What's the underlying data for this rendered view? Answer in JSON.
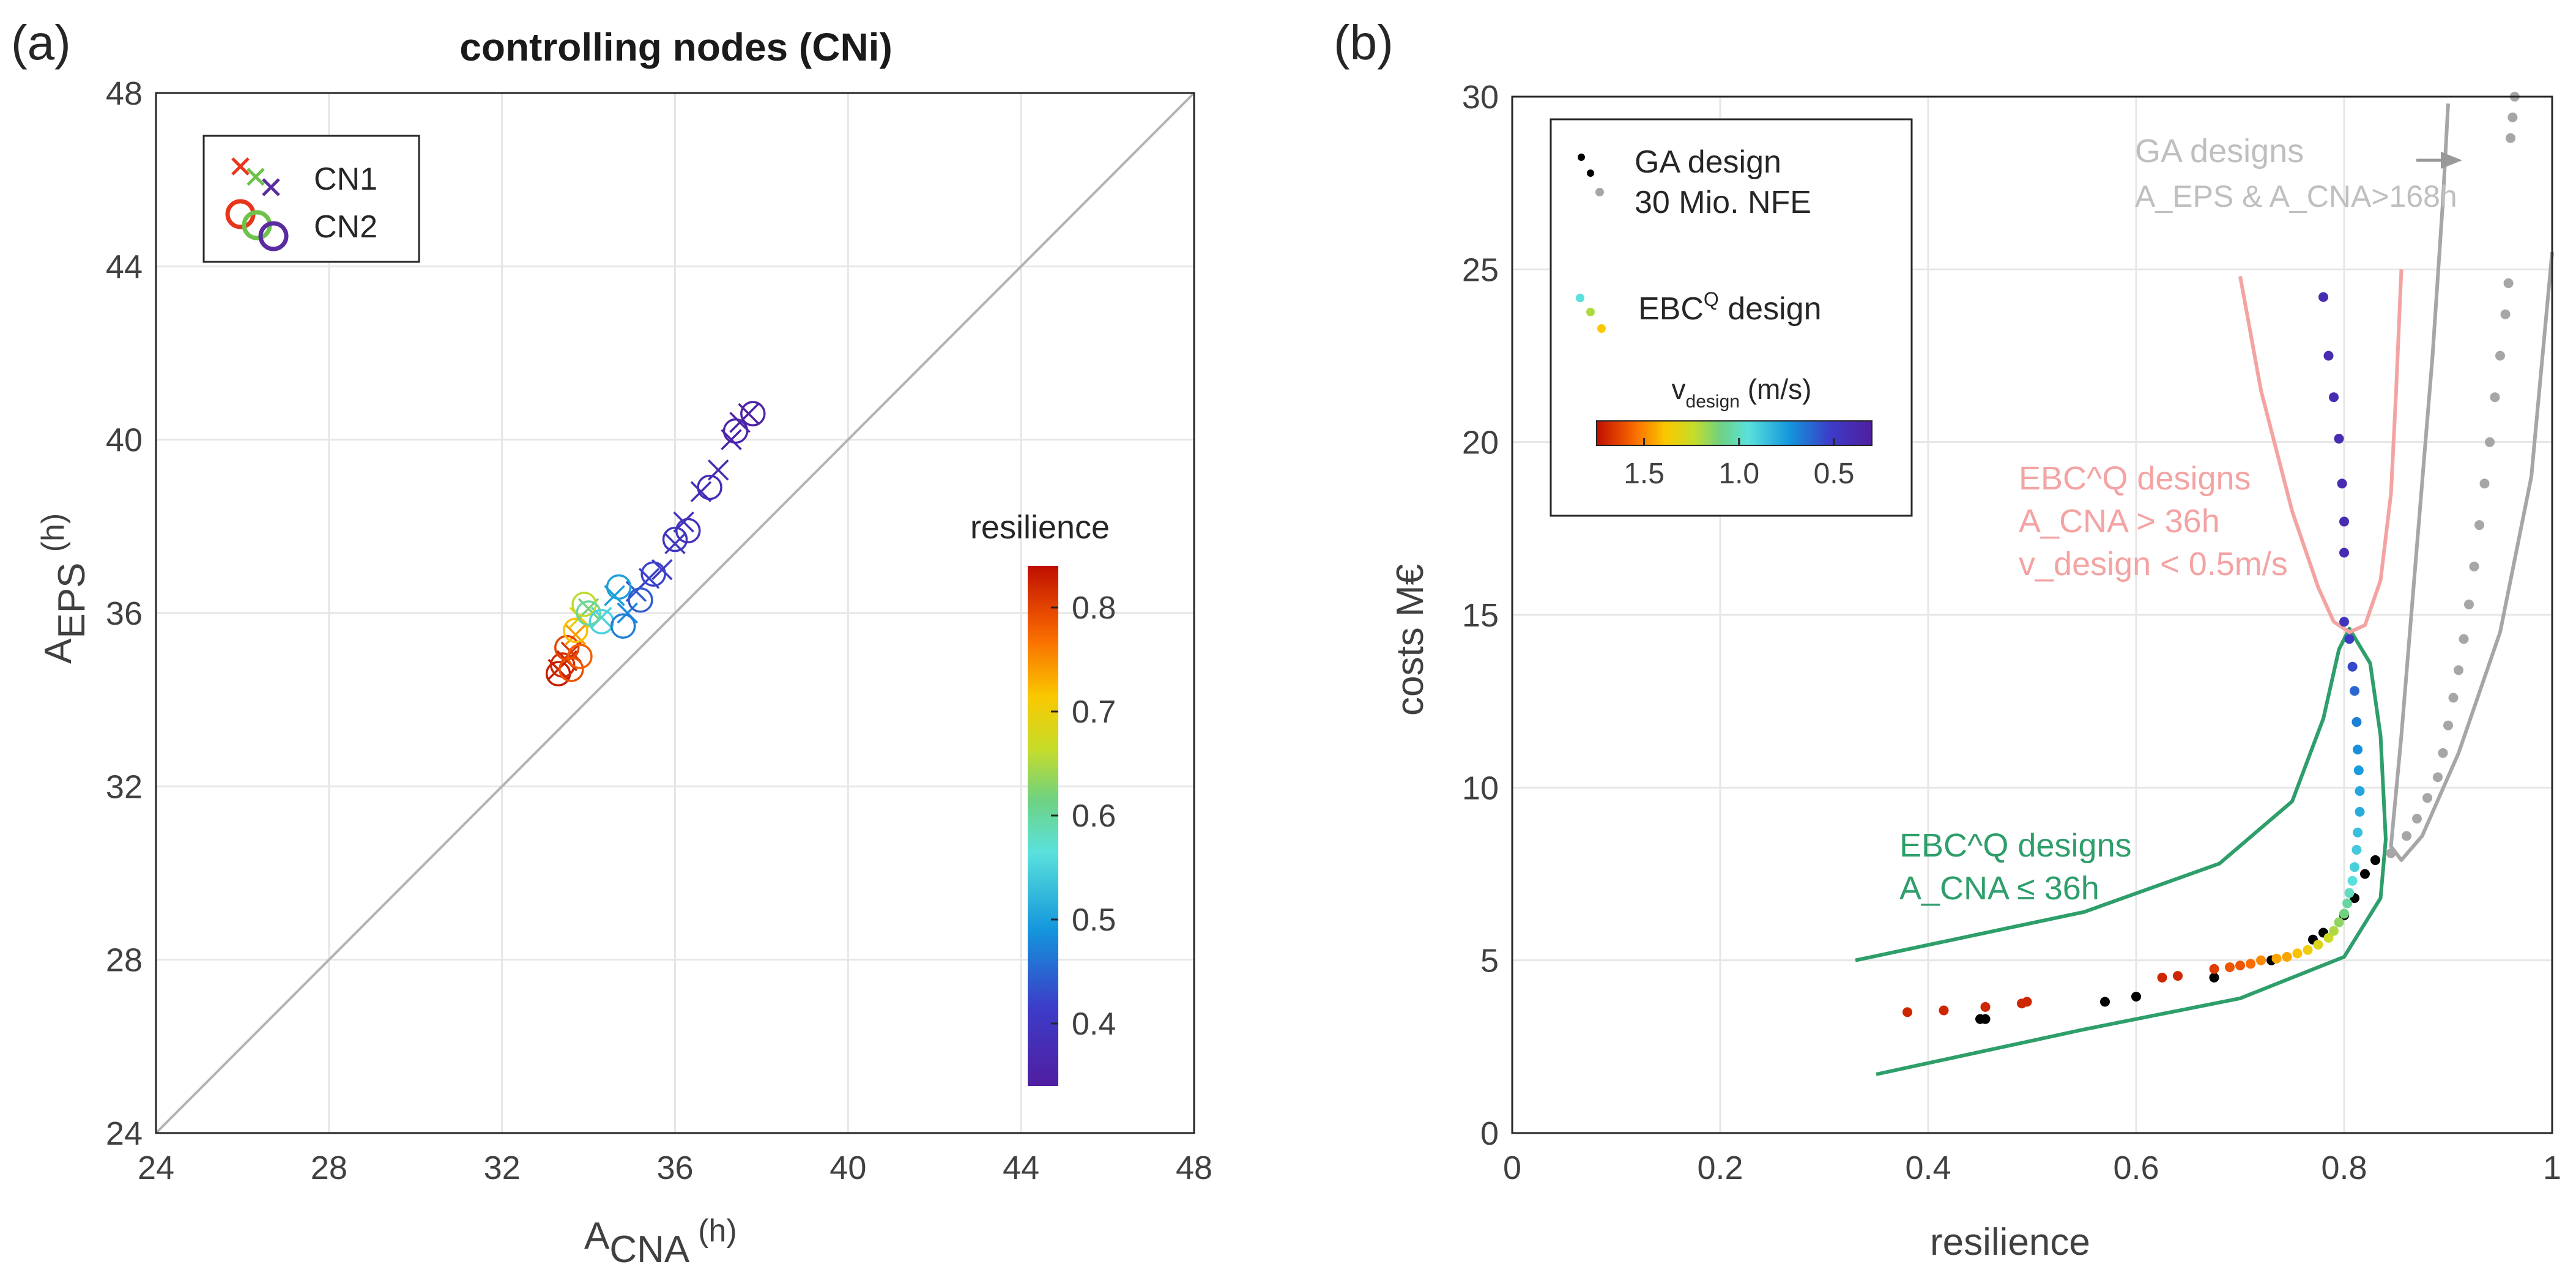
{
  "panel_a_label": "(a)",
  "panel_b_label": "(b)",
  "chart_data": [
    {
      "type": "scatter",
      "title": "controlling nodes (CNi)",
      "xlabel": "A",
      "xlabel_sub": "CNA",
      "xlabel_unit": "(h)",
      "ylabel": "A",
      "ylabel_sub": "EPS",
      "ylabel_unit": "(h)",
      "xlim": [
        24,
        48
      ],
      "ylim": [
        24,
        48
      ],
      "xticks": [
        24,
        28,
        32,
        36,
        40,
        44,
        48
      ],
      "yticks": [
        24,
        28,
        32,
        36,
        40,
        44,
        48
      ],
      "grid": true,
      "reference_line": "y = x",
      "legend": {
        "position": "top-left",
        "entries": [
          {
            "label": "CN1",
            "marker": "x"
          },
          {
            "label": "CN2",
            "marker": "o"
          }
        ]
      },
      "colorbar": {
        "label": "resilience",
        "ticks": [
          "0.8",
          "0.7",
          "0.6",
          "0.5",
          "0.4"
        ],
        "range": [
          0.34,
          0.84
        ]
      },
      "series": [
        {
          "name": "CN1",
          "marker": "x",
          "points": [
            {
              "x": 33.3,
              "y": 34.7,
              "r": 0.83
            },
            {
              "x": 33.5,
              "y": 34.9,
              "r": 0.82
            },
            {
              "x": 33.6,
              "y": 35.1,
              "r": 0.81
            },
            {
              "x": 33.7,
              "y": 35.5,
              "r": 0.74
            },
            {
              "x": 33.8,
              "y": 35.9,
              "r": 0.7
            },
            {
              "x": 34.0,
              "y": 36.1,
              "r": 0.62
            },
            {
              "x": 34.3,
              "y": 35.9,
              "r": 0.55
            },
            {
              "x": 34.6,
              "y": 36.4,
              "r": 0.5
            },
            {
              "x": 34.9,
              "y": 36.0,
              "r": 0.48
            },
            {
              "x": 35.1,
              "y": 36.5,
              "r": 0.44
            },
            {
              "x": 35.4,
              "y": 36.8,
              "r": 0.42
            },
            {
              "x": 35.7,
              "y": 37.0,
              "r": 0.41
            },
            {
              "x": 36.0,
              "y": 37.6,
              "r": 0.4
            },
            {
              "x": 36.2,
              "y": 38.1,
              "r": 0.39
            },
            {
              "x": 36.6,
              "y": 38.8,
              "r": 0.38
            },
            {
              "x": 37.0,
              "y": 39.3,
              "r": 0.37
            },
            {
              "x": 37.3,
              "y": 40.0,
              "r": 0.36
            },
            {
              "x": 37.5,
              "y": 40.4,
              "r": 0.35
            },
            {
              "x": 37.7,
              "y": 40.6,
              "r": 0.35
            }
          ]
        },
        {
          "name": "CN2",
          "marker": "o",
          "points": [
            {
              "x": 33.3,
              "y": 34.6,
              "r": 0.83
            },
            {
              "x": 33.4,
              "y": 34.8,
              "r": 0.82
            },
            {
              "x": 33.5,
              "y": 35.2,
              "r": 0.8
            },
            {
              "x": 33.6,
              "y": 34.7,
              "r": 0.79
            },
            {
              "x": 33.8,
              "y": 35.0,
              "r": 0.78
            },
            {
              "x": 33.7,
              "y": 35.6,
              "r": 0.72
            },
            {
              "x": 33.9,
              "y": 36.2,
              "r": 0.66
            },
            {
              "x": 34.0,
              "y": 36.0,
              "r": 0.6
            },
            {
              "x": 34.3,
              "y": 35.8,
              "r": 0.55
            },
            {
              "x": 34.7,
              "y": 36.6,
              "r": 0.5
            },
            {
              "x": 34.8,
              "y": 35.7,
              "r": 0.47
            },
            {
              "x": 35.2,
              "y": 36.3,
              "r": 0.44
            },
            {
              "x": 35.5,
              "y": 36.9,
              "r": 0.42
            },
            {
              "x": 36.0,
              "y": 37.7,
              "r": 0.4
            },
            {
              "x": 36.3,
              "y": 37.9,
              "r": 0.39
            },
            {
              "x": 36.8,
              "y": 38.9,
              "r": 0.38
            },
            {
              "x": 37.4,
              "y": 40.2,
              "r": 0.36
            },
            {
              "x": 37.8,
              "y": 40.6,
              "r": 0.35
            }
          ]
        }
      ]
    },
    {
      "type": "scatter",
      "xlabel": "resilience",
      "ylabel": "costs M€",
      "xlim": [
        0,
        1
      ],
      "ylim": [
        0,
        30
      ],
      "xticks": [
        "0",
        "0.2",
        "0.4",
        "0.6",
        "0.8",
        "1"
      ],
      "yticks": [
        "0",
        "5",
        "10",
        "15",
        "20",
        "25",
        "30"
      ],
      "grid": true,
      "legend": {
        "position": "top-left",
        "ga_label_line1": "GA design",
        "ga_label_line2": "30 Mio. NFE",
        "ebc_label": "EBC",
        "ebc_sup": "Q",
        "ebc_label_rest": " design",
        "colorbar_label": "v",
        "colorbar_sub": "design",
        "colorbar_unit": " (m/s)",
        "colorbar_ticks": [
          "1.5",
          "1.0",
          "0.5"
        ]
      },
      "annotations": [
        {
          "id": "ga_high",
          "lines": [
            "GA designs",
            "A_EPS & A_CNA>168h"
          ],
          "color": "#bfbfbf"
        },
        {
          "id": "ebc_high",
          "lines": [
            "EBC^Q designs",
            "A_CNA > 36h",
            "v_design < 0.5m/s"
          ],
          "color": "#f4a3a3"
        },
        {
          "id": "ebc_low",
          "lines": [
            "EBC^Q designs",
            "A_CNA ≤ 36h"
          ],
          "color": "#2e9e6a"
        }
      ],
      "series": [
        {
          "name": "GA design",
          "color": "#000000",
          "points": [
            {
              "x": 0.455,
              "y": 3.3
            },
            {
              "x": 0.45,
              "y": 3.3
            },
            {
              "x": 0.57,
              "y": 3.8
            },
            {
              "x": 0.6,
              "y": 3.95
            },
            {
              "x": 0.675,
              "y": 4.5
            },
            {
              "x": 0.73,
              "y": 5.0
            },
            {
              "x": 0.77,
              "y": 5.6
            },
            {
              "x": 0.78,
              "y": 5.8
            },
            {
              "x": 0.8,
              "y": 6.3
            },
            {
              "x": 0.81,
              "y": 6.8
            },
            {
              "x": 0.82,
              "y": 7.5
            },
            {
              "x": 0.83,
              "y": 7.9
            }
          ]
        },
        {
          "name": "GA design (A_EPS & A_CNA>168h)",
          "color": "#a6a6a6",
          "points": [
            {
              "x": 0.845,
              "y": 8.1
            },
            {
              "x": 0.86,
              "y": 8.6
            },
            {
              "x": 0.87,
              "y": 9.1
            },
            {
              "x": 0.88,
              "y": 9.7
            },
            {
              "x": 0.89,
              "y": 10.3
            },
            {
              "x": 0.895,
              "y": 11.0
            },
            {
              "x": 0.9,
              "y": 11.8
            },
            {
              "x": 0.905,
              "y": 12.6
            },
            {
              "x": 0.91,
              "y": 13.4
            },
            {
              "x": 0.915,
              "y": 14.3
            },
            {
              "x": 0.92,
              "y": 15.3
            },
            {
              "x": 0.925,
              "y": 16.4
            },
            {
              "x": 0.93,
              "y": 17.6
            },
            {
              "x": 0.935,
              "y": 18.8
            },
            {
              "x": 0.94,
              "y": 20.0
            },
            {
              "x": 0.945,
              "y": 21.3
            },
            {
              "x": 0.95,
              "y": 22.5
            },
            {
              "x": 0.955,
              "y": 23.7
            },
            {
              "x": 0.958,
              "y": 24.6
            },
            {
              "x": 0.96,
              "y": 28.8
            },
            {
              "x": 0.962,
              "y": 29.4
            },
            {
              "x": 0.964,
              "y": 30.0
            }
          ]
        },
        {
          "name": "EBC^Q design",
          "colored_by": "v_design (m/s)",
          "points": [
            {
              "x": 0.38,
              "y": 3.5,
              "v": 1.7
            },
            {
              "x": 0.415,
              "y": 3.55,
              "v": 1.7
            },
            {
              "x": 0.455,
              "y": 3.65,
              "v": 1.7
            },
            {
              "x": 0.49,
              "y": 3.75,
              "v": 1.7
            },
            {
              "x": 0.495,
              "y": 3.8,
              "v": 1.7
            },
            {
              "x": 0.625,
              "y": 4.5,
              "v": 1.7
            },
            {
              "x": 0.64,
              "y": 4.55,
              "v": 1.7
            },
            {
              "x": 0.675,
              "y": 4.75,
              "v": 1.65
            },
            {
              "x": 0.69,
              "y": 4.8,
              "v": 1.6
            },
            {
              "x": 0.7,
              "y": 4.85,
              "v": 1.6
            },
            {
              "x": 0.71,
              "y": 4.9,
              "v": 1.55
            },
            {
              "x": 0.72,
              "y": 5.0,
              "v": 1.5
            },
            {
              "x": 0.735,
              "y": 5.05,
              "v": 1.45
            },
            {
              "x": 0.745,
              "y": 5.1,
              "v": 1.45
            },
            {
              "x": 0.755,
              "y": 5.2,
              "v": 1.4
            },
            {
              "x": 0.765,
              "y": 5.3,
              "v": 1.35
            },
            {
              "x": 0.775,
              "y": 5.45,
              "v": 1.3
            },
            {
              "x": 0.785,
              "y": 5.65,
              "v": 1.25
            },
            {
              "x": 0.79,
              "y": 5.85,
              "v": 1.2
            },
            {
              "x": 0.795,
              "y": 6.1,
              "v": 1.15
            },
            {
              "x": 0.8,
              "y": 6.35,
              "v": 1.1
            },
            {
              "x": 0.803,
              "y": 6.65,
              "v": 1.05
            },
            {
              "x": 0.805,
              "y": 6.95,
              "v": 1.0
            },
            {
              "x": 0.808,
              "y": 7.3,
              "v": 0.95
            },
            {
              "x": 0.81,
              "y": 7.7,
              "v": 0.9
            },
            {
              "x": 0.812,
              "y": 8.2,
              "v": 0.88
            },
            {
              "x": 0.813,
              "y": 8.7,
              "v": 0.85
            },
            {
              "x": 0.815,
              "y": 9.3,
              "v": 0.8
            },
            {
              "x": 0.815,
              "y": 9.9,
              "v": 0.78
            },
            {
              "x": 0.814,
              "y": 10.5,
              "v": 0.75
            },
            {
              "x": 0.813,
              "y": 11.1,
              "v": 0.72
            },
            {
              "x": 0.812,
              "y": 11.9,
              "v": 0.68
            },
            {
              "x": 0.81,
              "y": 12.8,
              "v": 0.62
            },
            {
              "x": 0.808,
              "y": 13.5,
              "v": 0.55
            },
            {
              "x": 0.805,
              "y": 14.3,
              "v": 0.5
            },
            {
              "x": 0.8,
              "y": 14.8,
              "v": 0.45
            },
            {
              "x": 0.8,
              "y": 16.8,
              "v": 0.4
            },
            {
              "x": 0.8,
              "y": 17.7,
              "v": 0.4
            },
            {
              "x": 0.798,
              "y": 18.8,
              "v": 0.4
            },
            {
              "x": 0.795,
              "y": 20.1,
              "v": 0.4
            },
            {
              "x": 0.79,
              "y": 21.3,
              "v": 0.4
            },
            {
              "x": 0.785,
              "y": 22.5,
              "v": 0.4
            },
            {
              "x": 0.78,
              "y": 24.2,
              "v": 0.4
            }
          ]
        }
      ]
    }
  ]
}
